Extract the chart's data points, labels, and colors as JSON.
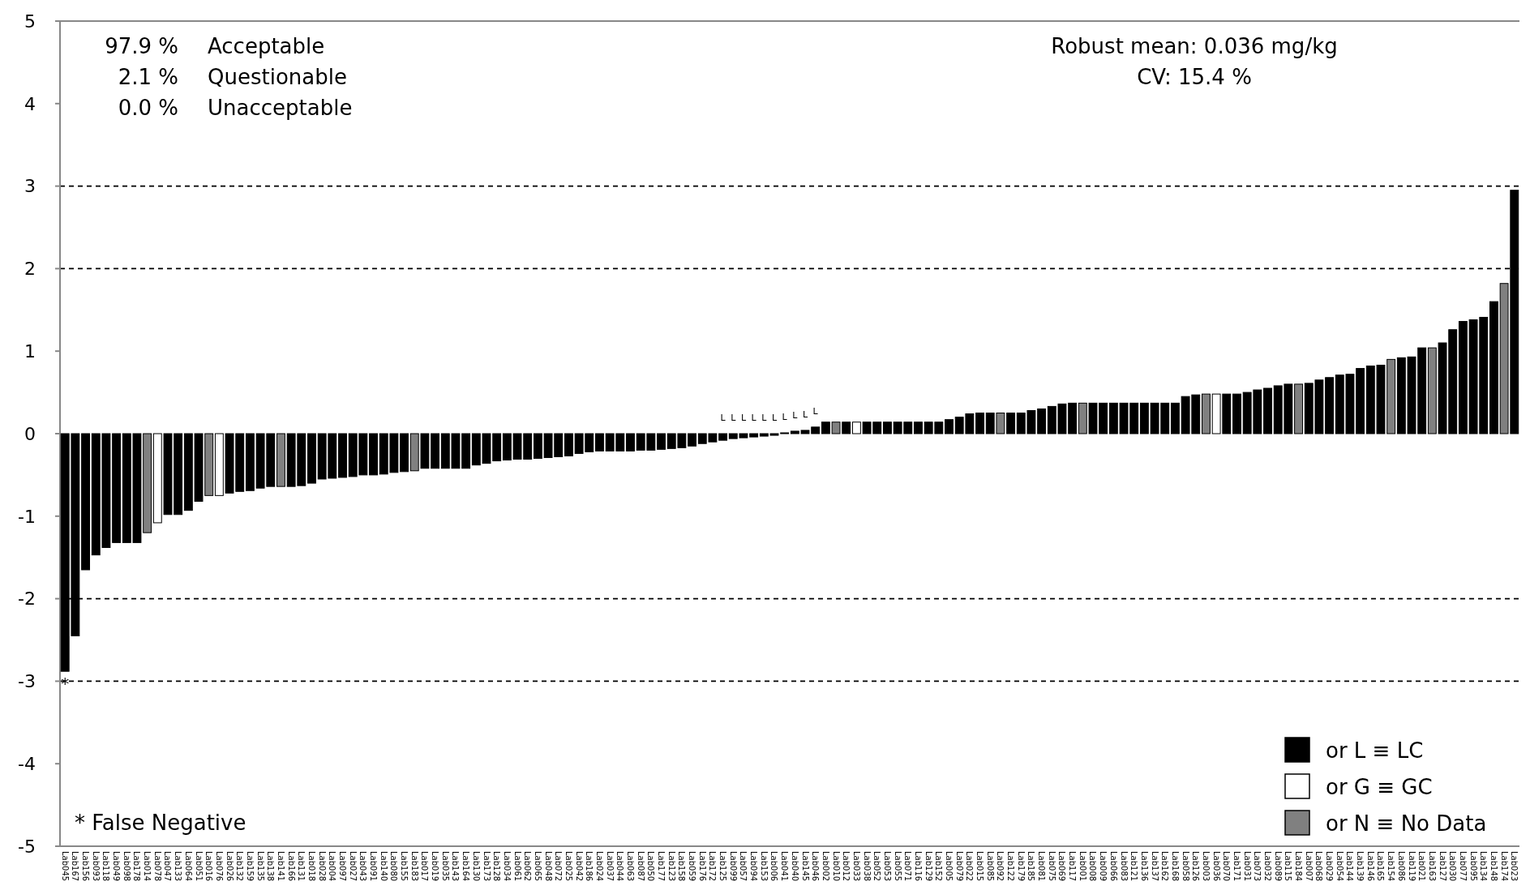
{
  "chart_data": {
    "type": "bar",
    "stacked": true,
    "categories": [
      "Lab045",
      "Lab167",
      "Lab156",
      "Lab093",
      "Lab118",
      "Lab049",
      "Lab098",
      "Lab178",
      "Lab014",
      "Lab078",
      "Lab047",
      "Lab133",
      "Lab064",
      "Lab051",
      "Lab016",
      "Lab076",
      "Lab026",
      "Lab132",
      "Lab159",
      "Lab135",
      "Lab138",
      "Lab141",
      "Lab166",
      "Lab131",
      "Lab018",
      "Lab028",
      "Lab004",
      "Lab097",
      "Lab027",
      "Lab043",
      "Lab091",
      "Lab140",
      "Lab080",
      "Lab155",
      "Lab183",
      "Lab017",
      "Lab019",
      "Lab035",
      "Lab143",
      "Lab164",
      "Lab130",
      "Lab173",
      "Lab128",
      "Lab034",
      "Lab061",
      "Lab062",
      "Lab065",
      "Lab048",
      "Lab072",
      "Lab025",
      "Lab042",
      "Lab186",
      "Lab024",
      "Lab037",
      "Lab044",
      "Lab063",
      "Lab087",
      "Lab050",
      "Lab177",
      "Lab123",
      "Lab158",
      "Lab059",
      "Lab176",
      "Lab172",
      "Lab125",
      "Lab099",
      "Lab057",
      "Lab094",
      "Lab153",
      "Lab006",
      "Lab041",
      "Lab040",
      "Lab145",
      "Lab046",
      "Lab002",
      "Lab010",
      "Lab012",
      "Lab033",
      "Lab038",
      "Lab052",
      "Lab053",
      "Lab055",
      "Lab071",
      "Lab116",
      "Lab129",
      "Lab152",
      "Lab005",
      "Lab079",
      "Lab022",
      "Lab015",
      "Lab085",
      "Lab092",
      "Lab122",
      "Lab179",
      "Lab185",
      "Lab081",
      "Lab075",
      "Lab069",
      "Lab117",
      "Lab001",
      "Lab008",
      "Lab009",
      "Lab066",
      "Lab083",
      "Lab121",
      "Lab136",
      "Lab137",
      "Lab162",
      "Lab168",
      "Lab058",
      "Lab126",
      "Lab003",
      "Lab036",
      "Lab070",
      "Lab171",
      "Lab031",
      "Lab073",
      "Lab032",
      "Lab089",
      "Lab115",
      "Lab184",
      "Lab007",
      "Lab068",
      "Lab029",
      "Lab054",
      "Lab144",
      "Lab139",
      "Lab146",
      "Lab165",
      "Lab154",
      "Lab086",
      "Lab119",
      "Lab021",
      "Lab163",
      "Lab127",
      "Lab030",
      "Lab077",
      "Lab095",
      "Lab134",
      "Lab148",
      "Lab174",
      "Lab023"
    ],
    "series": [
      {
        "name": "or L ≡ LC",
        "color": "#000000",
        "values": [
          -2.88,
          -2.45,
          -1.65,
          -1.47,
          -1.38,
          -1.32,
          -1.32,
          -1.32,
          null,
          null,
          -0.98,
          -0.98,
          -0.93,
          -0.82,
          null,
          null,
          -0.72,
          -0.7,
          -0.69,
          -0.66,
          -0.64,
          null,
          -0.64,
          -0.63,
          -0.6,
          -0.55,
          -0.54,
          -0.53,
          -0.52,
          -0.5,
          -0.5,
          -0.49,
          -0.47,
          -0.46,
          null,
          -0.42,
          -0.42,
          -0.42,
          -0.42,
          -0.42,
          -0.38,
          -0.36,
          -0.33,
          -0.32,
          -0.31,
          -0.31,
          -0.3,
          -0.29,
          -0.28,
          -0.27,
          -0.24,
          -0.22,
          -0.21,
          -0.21,
          -0.21,
          -0.21,
          -0.2,
          -0.2,
          -0.19,
          -0.18,
          -0.17,
          -0.15,
          -0.12,
          -0.1,
          -0.08,
          -0.06,
          -0.05,
          -0.04,
          -0.03,
          -0.02,
          0.01,
          0.03,
          0.04,
          0.08,
          0.14,
          null,
          0.14,
          null,
          0.14,
          0.14,
          0.14,
          0.14,
          0.14,
          0.14,
          0.14,
          0.14,
          0.17,
          0.2,
          0.24,
          0.25,
          0.25,
          null,
          0.25,
          0.25,
          0.28,
          0.3,
          0.33,
          0.36,
          0.37,
          null,
          0.37,
          0.37,
          0.37,
          0.37,
          0.37,
          0.37,
          0.37,
          0.37,
          0.37,
          0.45,
          0.47,
          null,
          null,
          0.48,
          0.48,
          0.5,
          0.53,
          0.55,
          0.58,
          0.6,
          null,
          0.61,
          0.65,
          0.68,
          0.71,
          0.72,
          0.79,
          0.82,
          0.83,
          null,
          0.92,
          0.93,
          1.04,
          null,
          1.1,
          1.26,
          1.36,
          1.38,
          1.41,
          1.6,
          null,
          2.95
        ]
      },
      {
        "name": "or G ≡ GC",
        "color": "#ffffff",
        "values": [
          null,
          null,
          null,
          null,
          null,
          null,
          null,
          null,
          null,
          -1.08,
          null,
          null,
          null,
          null,
          null,
          -0.75,
          null,
          null,
          null,
          null,
          null,
          null,
          null,
          null,
          null,
          null,
          null,
          null,
          null,
          null,
          null,
          null,
          null,
          null,
          null,
          null,
          null,
          null,
          null,
          null,
          null,
          null,
          null,
          null,
          null,
          null,
          null,
          null,
          null,
          null,
          null,
          null,
          null,
          null,
          null,
          null,
          null,
          null,
          null,
          null,
          null,
          null,
          null,
          null,
          null,
          null,
          null,
          null,
          null,
          null,
          null,
          null,
          null,
          null,
          null,
          null,
          null,
          0.14,
          null,
          null,
          null,
          null,
          null,
          null,
          null,
          null,
          null,
          null,
          null,
          null,
          null,
          null,
          null,
          null,
          null,
          null,
          null,
          null,
          null,
          null,
          null,
          null,
          null,
          null,
          null,
          null,
          null,
          null,
          null,
          null,
          null,
          null,
          0.48,
          null,
          null,
          null,
          null,
          null,
          null,
          null,
          null,
          null,
          null,
          null,
          null,
          null,
          null,
          null,
          null,
          null,
          null,
          null,
          null,
          null,
          null,
          null,
          null,
          null,
          null,
          null,
          null,
          null
        ]
      },
      {
        "name": "or N ≡ No Data",
        "color": "#808080",
        "values": [
          null,
          null,
          null,
          null,
          null,
          null,
          null,
          null,
          -1.2,
          null,
          null,
          null,
          null,
          null,
          -0.75,
          null,
          null,
          null,
          null,
          null,
          null,
          -0.64,
          null,
          null,
          null,
          null,
          null,
          null,
          null,
          null,
          null,
          null,
          null,
          null,
          -0.45,
          null,
          null,
          null,
          null,
          null,
          null,
          null,
          null,
          null,
          null,
          null,
          null,
          null,
          null,
          null,
          null,
          null,
          null,
          null,
          null,
          null,
          null,
          null,
          null,
          null,
          null,
          null,
          null,
          null,
          null,
          null,
          null,
          null,
          null,
          null,
          null,
          null,
          null,
          null,
          null,
          0.14,
          null,
          null,
          null,
          null,
          null,
          null,
          null,
          null,
          null,
          null,
          null,
          null,
          null,
          null,
          null,
          0.25,
          null,
          null,
          null,
          null,
          null,
          null,
          null,
          0.37,
          null,
          null,
          null,
          null,
          null,
          null,
          null,
          null,
          null,
          null,
          null,
          0.48,
          null,
          null,
          null,
          null,
          null,
          null,
          null,
          null,
          0.6,
          null,
          null,
          null,
          null,
          null,
          null,
          null,
          null,
          0.9,
          null,
          null,
          null,
          1.04,
          null,
          null,
          null,
          null,
          null,
          null,
          1.82,
          null
        ]
      }
    ],
    "ylim": [
      -5,
      5
    ],
    "yticks": [
      -5,
      -4,
      -3,
      -2,
      -1,
      0,
      1,
      2,
      3,
      4,
      5
    ],
    "grid": false,
    "legend": "bottom right",
    "ref_lines": [
      {
        "axis": "y",
        "value": 3,
        "line_style": "dashed"
      },
      {
        "axis": "y",
        "value": 2,
        "line_style": "dashed"
      },
      {
        "axis": "y",
        "value": -2,
        "line_style": "dashed"
      },
      {
        "axis": "y",
        "value": -3,
        "line_style": "dashed"
      }
    ],
    "annotations": [
      "97.9 %",
      "Acceptable",
      "2.1 %",
      "Questionable",
      "0.0 %",
      "Unacceptable",
      "Robust mean: 0.036 mg/kg",
      "CV: 15.4 %",
      "* False Negative",
      {
        "text": "*",
        "x": "Lab045",
        "y": -2.88
      },
      {
        "text": "L",
        "x": "Lab125",
        "y": -0.08
      },
      {
        "text": "L",
        "x": "Lab099",
        "y": -0.06
      },
      {
        "text": "L",
        "x": "Lab057",
        "y": -0.05
      },
      {
        "text": "L",
        "x": "Lab094",
        "y": -0.04
      },
      {
        "text": "L",
        "x": "Lab153",
        "y": -0.03
      },
      {
        "text": "L",
        "x": "Lab006",
        "y": -0.02
      },
      {
        "text": "L",
        "x": "Lab041",
        "y": 0.01
      },
      {
        "text": "L",
        "x": "Lab040",
        "y": 0.03
      },
      {
        "text": "L",
        "x": "Lab145",
        "y": 0.04
      },
      {
        "text": "L",
        "x": "Lab046",
        "y": 0.08
      }
    ]
  }
}
